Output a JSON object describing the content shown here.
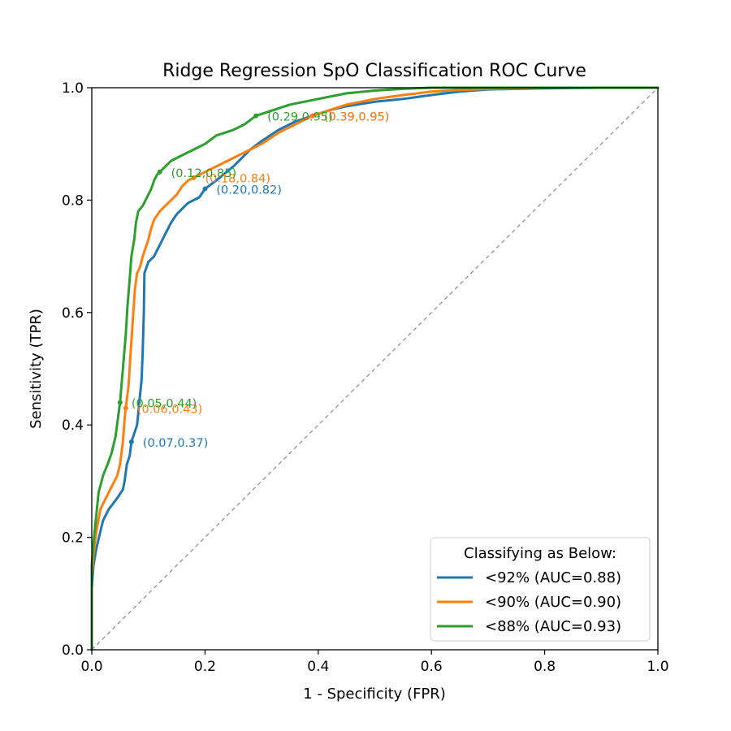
{
  "chart_data": {
    "type": "line",
    "title": "Ridge Regression SpO Classification ROC Curve",
    "xlabel": "1 - Specificity (FPR)",
    "ylabel": "Sensitivity (TPR)",
    "xlim": [
      0.0,
      1.0
    ],
    "ylim": [
      0.0,
      1.0
    ],
    "x_ticks": [
      "0.0",
      "0.2",
      "0.4",
      "0.6",
      "0.8",
      "1.0"
    ],
    "y_ticks": [
      "0.0",
      "0.2",
      "0.4",
      "0.6",
      "0.8",
      "1.0"
    ],
    "grid": false,
    "legend": {
      "title": "Classifying as Below:",
      "location": "lower-right"
    },
    "diagonal_reference": {
      "points": [
        [
          0,
          0
        ],
        [
          1,
          1
        ]
      ],
      "style": "dashed",
      "color": "#999999"
    },
    "series": [
      {
        "name": "<92% (AUC=0.88)",
        "color": "#1f77b4",
        "points": [
          [
            0,
            0
          ],
          [
            0,
            0.11
          ],
          [
            0.003,
            0.15
          ],
          [
            0.008,
            0.18
          ],
          [
            0.015,
            0.21
          ],
          [
            0.02,
            0.23
          ],
          [
            0.03,
            0.25
          ],
          [
            0.045,
            0.27
          ],
          [
            0.055,
            0.285
          ],
          [
            0.058,
            0.3
          ],
          [
            0.062,
            0.33
          ],
          [
            0.067,
            0.345
          ],
          [
            0.07,
            0.37
          ],
          [
            0.075,
            0.385
          ],
          [
            0.08,
            0.4
          ],
          [
            0.085,
            0.45
          ],
          [
            0.088,
            0.48
          ],
          [
            0.09,
            0.53
          ],
          [
            0.092,
            0.6
          ],
          [
            0.093,
            0.67
          ],
          [
            0.1,
            0.69
          ],
          [
            0.11,
            0.7
          ],
          [
            0.12,
            0.72
          ],
          [
            0.13,
            0.74
          ],
          [
            0.14,
            0.76
          ],
          [
            0.15,
            0.775
          ],
          [
            0.16,
            0.785
          ],
          [
            0.17,
            0.795
          ],
          [
            0.18,
            0.8
          ],
          [
            0.19,
            0.805
          ],
          [
            0.2,
            0.82
          ],
          [
            0.22,
            0.835
          ],
          [
            0.25,
            0.86
          ],
          [
            0.28,
            0.89
          ],
          [
            0.3,
            0.905
          ],
          [
            0.33,
            0.925
          ],
          [
            0.36,
            0.94
          ],
          [
            0.39,
            0.95
          ],
          [
            0.42,
            0.96
          ],
          [
            0.45,
            0.967
          ],
          [
            0.5,
            0.975
          ],
          [
            0.55,
            0.98
          ],
          [
            0.6,
            0.987
          ],
          [
            0.65,
            0.993
          ],
          [
            0.7,
            0.997
          ],
          [
            0.8,
            0.999
          ],
          [
            0.9,
            1.0
          ],
          [
            1.0,
            1.0
          ]
        ],
        "annotations": [
          {
            "x": 0.07,
            "y": 0.37,
            "label": "(0.07,0.37)"
          },
          {
            "x": 0.2,
            "y": 0.82,
            "label": "(0.20,0.82)"
          },
          {
            "x": 0.39,
            "y": 0.95,
            "label": "(0.39,0.95)"
          }
        ]
      },
      {
        "name": "<90% (AUC=0.90)",
        "color": "#ff7f0e",
        "points": [
          [
            0,
            0
          ],
          [
            0,
            0.13
          ],
          [
            0.003,
            0.17
          ],
          [
            0.008,
            0.21
          ],
          [
            0.015,
            0.25
          ],
          [
            0.025,
            0.27
          ],
          [
            0.035,
            0.29
          ],
          [
            0.045,
            0.31
          ],
          [
            0.05,
            0.33
          ],
          [
            0.055,
            0.37
          ],
          [
            0.058,
            0.41
          ],
          [
            0.06,
            0.43
          ],
          [
            0.065,
            0.47
          ],
          [
            0.068,
            0.52
          ],
          [
            0.072,
            0.58
          ],
          [
            0.076,
            0.64
          ],
          [
            0.08,
            0.67
          ],
          [
            0.085,
            0.68
          ],
          [
            0.09,
            0.7
          ],
          [
            0.1,
            0.73
          ],
          [
            0.105,
            0.75
          ],
          [
            0.11,
            0.765
          ],
          [
            0.12,
            0.78
          ],
          [
            0.13,
            0.79
          ],
          [
            0.14,
            0.8
          ],
          [
            0.15,
            0.81
          ],
          [
            0.16,
            0.825
          ],
          [
            0.17,
            0.835
          ],
          [
            0.18,
            0.84
          ],
          [
            0.2,
            0.85
          ],
          [
            0.22,
            0.86
          ],
          [
            0.25,
            0.875
          ],
          [
            0.28,
            0.89
          ],
          [
            0.3,
            0.9
          ],
          [
            0.33,
            0.92
          ],
          [
            0.36,
            0.935
          ],
          [
            0.39,
            0.95
          ],
          [
            0.42,
            0.96
          ],
          [
            0.45,
            0.97
          ],
          [
            0.5,
            0.98
          ],
          [
            0.55,
            0.987
          ],
          [
            0.6,
            0.993
          ],
          [
            0.65,
            0.996
          ],
          [
            0.7,
            0.998
          ],
          [
            0.8,
            1.0
          ],
          [
            1.0,
            1.0
          ]
        ],
        "annotations": [
          {
            "x": 0.06,
            "y": 0.43,
            "label": "(0.06,0.43)"
          },
          {
            "x": 0.18,
            "y": 0.84,
            "label": "(0.18,0.84)"
          },
          {
            "x": 0.39,
            "y": 0.95,
            "label": "(0.39,0.95)"
          }
        ]
      },
      {
        "name": "<88% (AUC=0.93)",
        "color": "#2ca02c",
        "points": [
          [
            0,
            0
          ],
          [
            0,
            0.15
          ],
          [
            0.003,
            0.19
          ],
          [
            0.007,
            0.23
          ],
          [
            0.012,
            0.28
          ],
          [
            0.02,
            0.31
          ],
          [
            0.028,
            0.33
          ],
          [
            0.035,
            0.35
          ],
          [
            0.042,
            0.38
          ],
          [
            0.05,
            0.44
          ],
          [
            0.055,
            0.5
          ],
          [
            0.06,
            0.56
          ],
          [
            0.063,
            0.61
          ],
          [
            0.067,
            0.66
          ],
          [
            0.07,
            0.7
          ],
          [
            0.075,
            0.73
          ],
          [
            0.078,
            0.76
          ],
          [
            0.082,
            0.78
          ],
          [
            0.09,
            0.79
          ],
          [
            0.1,
            0.81
          ],
          [
            0.105,
            0.82
          ],
          [
            0.11,
            0.835
          ],
          [
            0.115,
            0.845
          ],
          [
            0.12,
            0.85
          ],
          [
            0.13,
            0.86
          ],
          [
            0.14,
            0.87
          ],
          [
            0.16,
            0.88
          ],
          [
            0.18,
            0.89
          ],
          [
            0.2,
            0.9
          ],
          [
            0.22,
            0.915
          ],
          [
            0.25,
            0.925
          ],
          [
            0.27,
            0.935
          ],
          [
            0.29,
            0.95
          ],
          [
            0.32,
            0.96
          ],
          [
            0.35,
            0.97
          ],
          [
            0.4,
            0.98
          ],
          [
            0.45,
            0.99
          ],
          [
            0.5,
            0.995
          ],
          [
            0.55,
            0.998
          ],
          [
            0.6,
            1.0
          ],
          [
            1.0,
            1.0
          ]
        ],
        "annotations": [
          {
            "x": 0.05,
            "y": 0.44,
            "label": "(0.05,0.44)"
          },
          {
            "x": 0.12,
            "y": 0.85,
            "label": "(0.12,0.85)"
          },
          {
            "x": 0.29,
            "y": 0.95,
            "label": "(0.29,0.95)"
          }
        ]
      }
    ]
  }
}
